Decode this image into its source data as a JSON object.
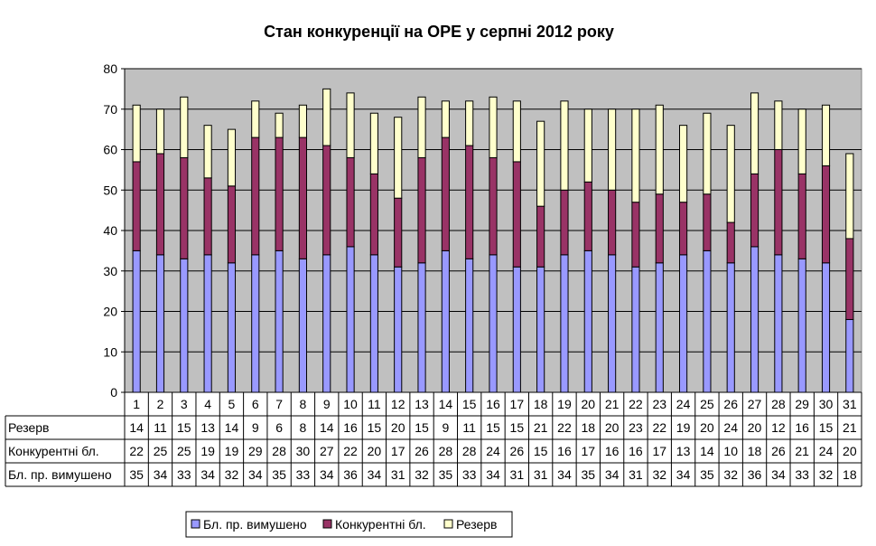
{
  "chart_data": {
    "type": "bar",
    "stacked": true,
    "title": "Стан конкуренції на ОРЕ  у серпні 2012 року",
    "categories": [
      "1",
      "2",
      "3",
      "4",
      "5",
      "6",
      "7",
      "8",
      "9",
      "10",
      "11",
      "12",
      "13",
      "14",
      "15",
      "16",
      "17",
      "18",
      "19",
      "20",
      "21",
      "22",
      "23",
      "24",
      "25",
      "26",
      "27",
      "28",
      "29",
      "30",
      "31"
    ],
    "ylim": [
      0,
      80
    ],
    "yticks": [
      "0",
      "10",
      "20",
      "30",
      "40",
      "50",
      "60",
      "70",
      "80"
    ],
    "grid": true,
    "legend_position": "bottom",
    "series": [
      {
        "name": "Бл. пр. вимушено",
        "color": "#9999ff",
        "values": [
          35,
          34,
          33,
          34,
          32,
          34,
          35,
          33,
          34,
          36,
          34,
          31,
          32,
          35,
          33,
          34,
          31,
          31,
          34,
          35,
          34,
          31,
          32,
          34,
          35,
          32,
          36,
          34,
          33,
          32,
          18
        ]
      },
      {
        "name": "Конкурентні бл.",
        "color": "#993366",
        "values": [
          22,
          25,
          25,
          19,
          19,
          29,
          28,
          30,
          27,
          22,
          20,
          17,
          26,
          28,
          28,
          24,
          26,
          15,
          16,
          17,
          16,
          16,
          17,
          13,
          14,
          10,
          18,
          26,
          21,
          24,
          20
        ]
      },
      {
        "name": "Резерв",
        "color": "#ffffcc",
        "values": [
          14,
          11,
          15,
          13,
          14,
          9,
          6,
          8,
          14,
          16,
          15,
          20,
          15,
          9,
          11,
          15,
          15,
          21,
          22,
          18,
          20,
          23,
          22,
          19,
          20,
          24,
          20,
          12,
          16,
          15,
          21
        ]
      }
    ],
    "table_rows": [
      {
        "label": "Резерв",
        "series_index": 2
      },
      {
        "label": "Конкурентні бл.",
        "series_index": 1
      },
      {
        "label": "Бл. пр. вимушено",
        "series_index": 0
      }
    ],
    "legend": [
      "Бл. пр. вимушено",
      "Конкурентні бл.",
      "Резерв"
    ],
    "colors": {
      "plot_background": "#c0c0c0",
      "grid": "#000000"
    }
  }
}
